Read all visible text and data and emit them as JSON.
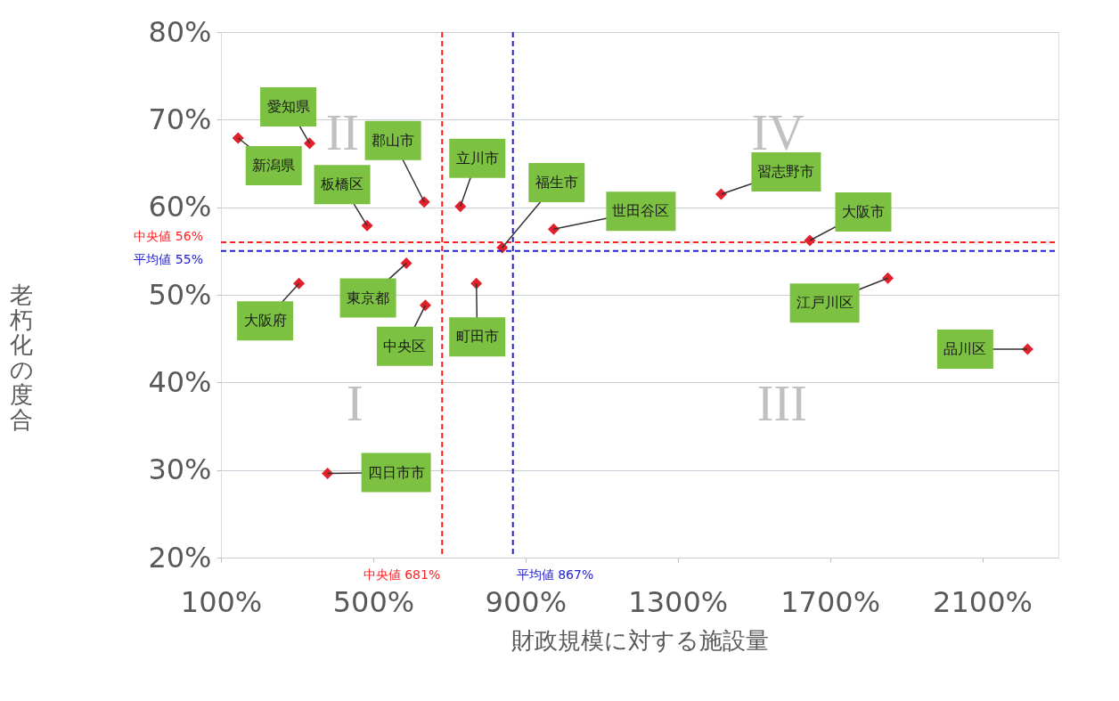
{
  "chart_data": {
    "type": "scatter",
    "xlabel": "財政規模に対する施設量",
    "ylabel": "老朽化の度合",
    "series": [
      {
        "color": "#e0202a",
        "x": [
          145,
          333,
          484,
          634,
          729,
          839,
          974,
          1414,
          1647,
          1852,
          2219,
          305,
          587,
          637,
          771,
          380
        ],
        "values": [
          67.9,
          67.3,
          57.9,
          60.6,
          60.1,
          55.4,
          57.5,
          61.5,
          56.2,
          51.9,
          43.8,
          51.3,
          53.6,
          48.8,
          51.3,
          29.6
        ]
      }
    ],
    "annotations": [
      {
        "text": "新潟県",
        "x": 145,
        "y": 67.9
      },
      {
        "text": "愛知県",
        "x": 333,
        "y": 67.3
      },
      {
        "text": "板橋区",
        "x": 484,
        "y": 57.9
      },
      {
        "text": "郡山市",
        "x": 634,
        "y": 60.6
      },
      {
        "text": "立川市",
        "x": 729,
        "y": 60.1
      },
      {
        "text": "福生市",
        "x": 839,
        "y": 55.4
      },
      {
        "text": "世田谷区",
        "x": 974,
        "y": 57.5
      },
      {
        "text": "習志野市",
        "x": 1414,
        "y": 61.5
      },
      {
        "text": "大阪市",
        "x": 1647,
        "y": 56.2
      },
      {
        "text": "江戸川区",
        "x": 1852,
        "y": 51.9
      },
      {
        "text": "品川区",
        "x": 2219,
        "y": 43.8
      },
      {
        "text": "大阪府",
        "x": 305,
        "y": 51.3
      },
      {
        "text": "東京都",
        "x": 587,
        "y": 53.6
      },
      {
        "text": "中央区",
        "x": 637,
        "y": 48.8
      },
      {
        "text": "町田市",
        "x": 771,
        "y": 51.3
      },
      {
        "text": "四日市市",
        "x": 380,
        "y": 29.6
      },
      "II",
      "IV",
      "I",
      "III"
    ],
    "ref_lines": [
      {
        "axis": "x",
        "value": 681,
        "label": "中央値 681%",
        "color": "#ff2020",
        "line_style": "dashed"
      },
      {
        "axis": "x",
        "value": 867,
        "label": "平均値 867%",
        "color": "#2020d0",
        "line_style": "dashed"
      },
      {
        "axis": "y",
        "value": 56,
        "label": "中央値 56%",
        "color": "#ff2020",
        "line_style": "dashed"
      },
      {
        "axis": "y",
        "value": 55,
        "label": "平均値 55%",
        "color": "#2020d0",
        "line_style": "dashed"
      }
    ],
    "xlim": [
      100,
      2300
    ],
    "xticks": [
      {
        "value": 100,
        "label": "100%"
      },
      {
        "value": 500,
        "label": "500%"
      },
      {
        "value": 900,
        "label": "900%"
      },
      {
        "value": 1300,
        "label": "1300%"
      },
      {
        "value": 1700,
        "label": "1700%"
      },
      {
        "value": 2100,
        "label": "2100%"
      }
    ],
    "ylim": [
      20,
      80
    ],
    "yticks": [
      {
        "value": 20,
        "label": "20%"
      },
      {
        "value": 30,
        "label": "30%"
      },
      {
        "value": 40,
        "label": "40%"
      },
      {
        "value": 50,
        "label": "50%"
      },
      {
        "value": 60,
        "label": "60%"
      },
      {
        "value": 70,
        "label": "70%"
      },
      {
        "value": 80,
        "label": "80%"
      }
    ],
    "grid": "y",
    "marker": "diamond"
  }
}
